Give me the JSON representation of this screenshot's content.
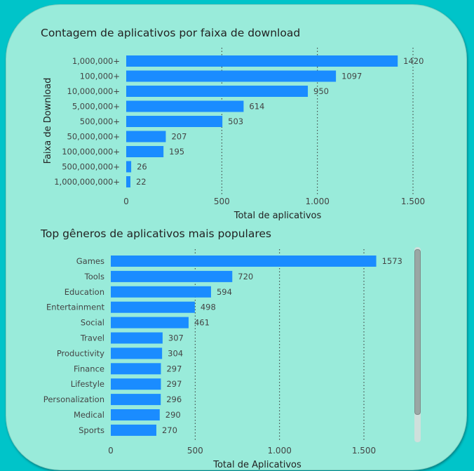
{
  "chart_data": [
    {
      "type": "bar",
      "orientation": "horizontal",
      "title": "Contagem de aplicativos por faixa de download",
      "xlabel": "Total de aplicativos",
      "ylabel": "Faixa de Download",
      "categories": [
        "1,000,000+",
        "100,000+",
        "10,000,000+",
        "5,000,000+",
        "500,000+",
        "50,000,000+",
        "100,000,000+",
        "500,000,000+",
        "1,000,000,000+"
      ],
      "values": [
        1420,
        1097,
        950,
        614,
        503,
        207,
        195,
        26,
        22
      ],
      "xlim": [
        0,
        1500
      ],
      "xticks": [
        0,
        500,
        1000,
        1500
      ],
      "xtick_labels": [
        "0",
        "500",
        "1.000",
        "1.500"
      ],
      "grid": "vertical dotted",
      "bar_color": "#1a8cff"
    },
    {
      "type": "bar",
      "orientation": "horizontal",
      "title": "Top gêneros de aplicativos mais populares",
      "xlabel": "Total de Aplicativos",
      "ylabel": "",
      "categories": [
        "Games",
        "Tools",
        "Education",
        "Entertainment",
        "Social",
        "Travel",
        "Productivity",
        "Finance",
        "Lifestyle",
        "Personalization",
        "Medical",
        "Sports"
      ],
      "values": [
        1573,
        720,
        594,
        498,
        461,
        307,
        304,
        297,
        297,
        296,
        290,
        270
      ],
      "xlim": [
        0,
        1500
      ],
      "xticks": [
        0,
        500,
        1000,
        1500
      ],
      "xtick_labels": [
        "0",
        "500",
        "1.000",
        "1.500"
      ],
      "grid": "vertical dotted",
      "bar_color": "#1a8cff",
      "scrollable": true
    }
  ]
}
